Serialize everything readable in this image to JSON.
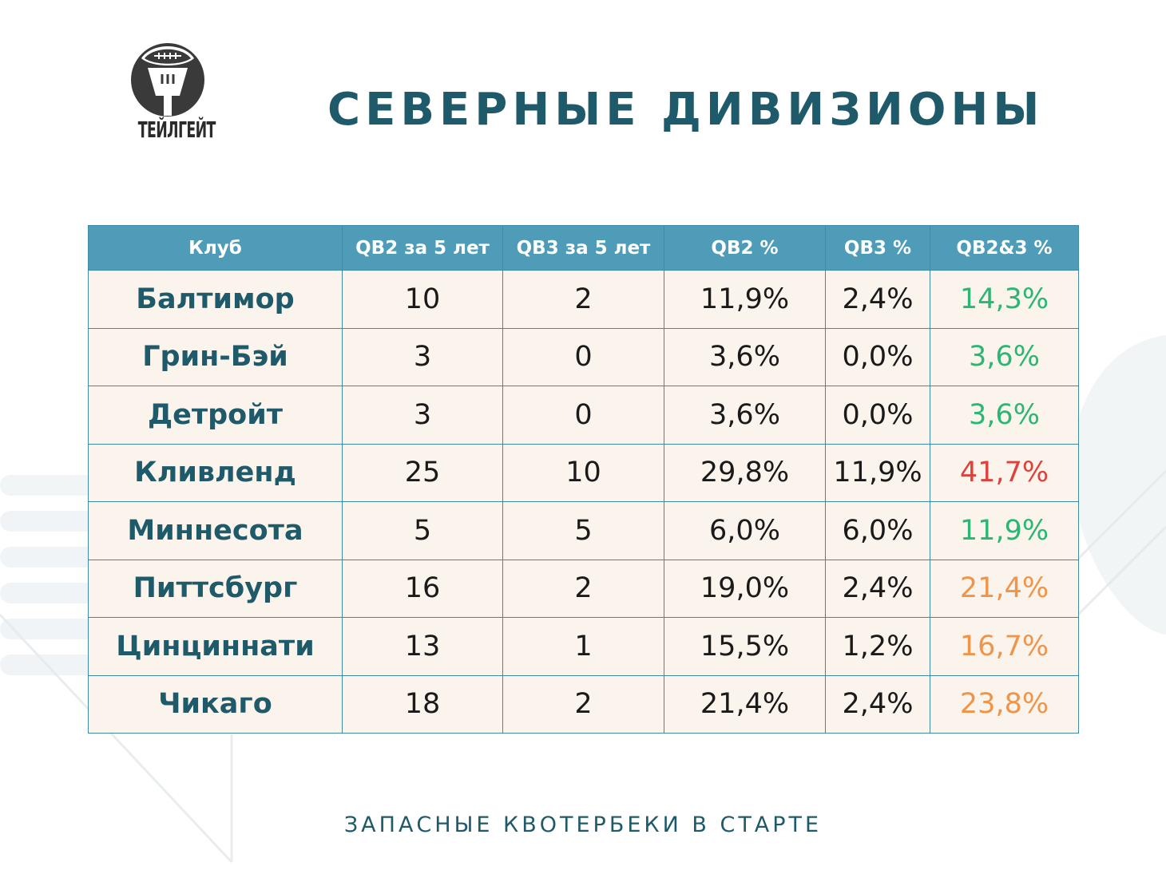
{
  "logo": {
    "text": "ТЕЙЛГЕЙТ"
  },
  "title": "СЕВЕРНЫЕ ДИВИЗИОНЫ",
  "table": {
    "headers": [
      "Клуб",
      "QB2 за 5 лет",
      "QB3 за 5 лет",
      "QB2 %",
      "QB3 %",
      "QB2&3 %"
    ],
    "rows": [
      {
        "club": "Балтимор",
        "qb2": "10",
        "qb3": "2",
        "qb2_pct": "11,9%",
        "qb3_pct": "2,4%",
        "total_pct": "14,3%",
        "total_color": "#2bb673"
      },
      {
        "club": "Грин-Бэй",
        "qb2": "3",
        "qb3": "0",
        "qb2_pct": "3,6%",
        "qb3_pct": "0,0%",
        "total_pct": "3,6%",
        "total_color": "#2bb673"
      },
      {
        "club": "Детройт",
        "qb2": "3",
        "qb3": "0",
        "qb2_pct": "3,6%",
        "qb3_pct": "0,0%",
        "total_pct": "3,6%",
        "total_color": "#2bb673"
      },
      {
        "club": "Кливленд",
        "qb2": "25",
        "qb3": "10",
        "qb2_pct": "29,8%",
        "qb3_pct": "11,9%",
        "total_pct": "41,7%",
        "total_color": "#e0403c"
      },
      {
        "club": "Миннесота",
        "qb2": "5",
        "qb3": "5",
        "qb2_pct": "6,0%",
        "qb3_pct": "6,0%",
        "total_pct": "11,9%",
        "total_color": "#2bb673"
      },
      {
        "club": "Питтсбург",
        "qb2": "16",
        "qb3": "2",
        "qb2_pct": "19,0%",
        "qb3_pct": "2,4%",
        "total_pct": "21,4%",
        "total_color": "#f0944a"
      },
      {
        "club": "Цинциннати",
        "qb2": "13",
        "qb3": "1",
        "qb2_pct": "15,5%",
        "qb3_pct": "1,2%",
        "total_pct": "16,7%",
        "total_color": "#f0944a"
      },
      {
        "club": "Чикаго",
        "qb2": "18",
        "qb3": "2",
        "qb2_pct": "21,4%",
        "qb3_pct": "2,4%",
        "total_pct": "23,8%",
        "total_color": "#f0944a"
      }
    ]
  },
  "footer": "ЗАПАСНЫЕ КВОТЕРБЕКИ В СТАРТЕ"
}
